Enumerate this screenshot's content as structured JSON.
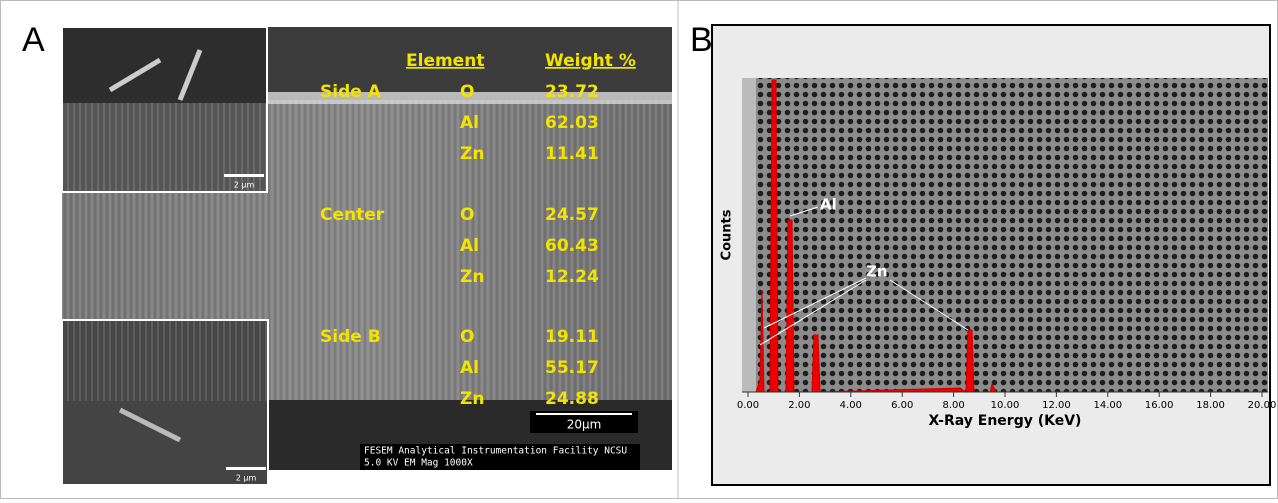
{
  "panel_a": {
    "label": "A",
    "table": {
      "header": [
        "Element",
        "Weight %"
      ],
      "groups": [
        {
          "name": "Side A",
          "rows": [
            [
              "O",
              23.72
            ],
            [
              "Al",
              62.03
            ],
            [
              "Zn",
              11.41
            ]
          ]
        },
        {
          "name": "Center",
          "rows": [
            [
              "O",
              24.57
            ],
            [
              "Al",
              60.43
            ],
            [
              "Zn",
              12.24
            ]
          ]
        },
        {
          "name": "Side B",
          "rows": [
            [
              "O",
              19.11
            ],
            [
              "Al",
              55.17
            ],
            [
              "Zn",
              24.88
            ]
          ]
        }
      ]
    },
    "inset_scale_bars": [
      "2 μm",
      "2 μm"
    ],
    "scale_bar": "20μm",
    "caption": [
      "FESEM  Analytical Instrumentation Facility NCSU",
      "5.0 KV EM Mag 1000X"
    ]
  },
  "panel_b": {
    "label": "B",
    "y_label": "Counts",
    "x_label": "X-Ray Energy (KeV)",
    "x_ticks": [
      "0.00",
      "2.00",
      "4.00",
      "6.00",
      "8.00",
      "10.00",
      "12.00",
      "14.00",
      "16.00",
      "18.00",
      "20.00"
    ],
    "peak_labels": [
      "Al",
      "Zn"
    ]
  }
}
